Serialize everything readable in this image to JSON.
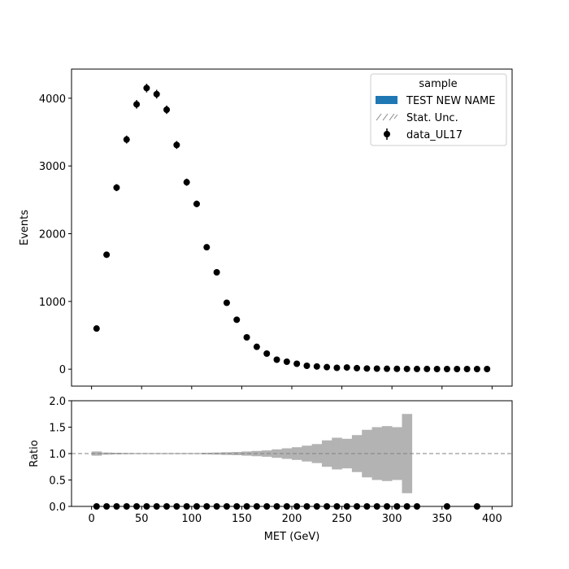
{
  "chart_data": [
    {
      "type": "scatter",
      "panel": "main",
      "title": "",
      "xlabel": "",
      "ylabel": "Events",
      "xlim": [
        -20,
        420
      ],
      "ylim": [
        -250,
        4430
      ],
      "xticks": [
        0,
        50,
        100,
        150,
        200,
        250,
        300,
        350,
        400
      ],
      "yticks": [
        0,
        1000,
        2000,
        3000,
        4000
      ],
      "grid": false,
      "legend": {
        "title": "sample",
        "placement": "top-right",
        "entries": [
          {
            "label": "TEST NEW NAME",
            "kind": "patch",
            "color": "#1f77b4"
          },
          {
            "label": "Stat. Unc.",
            "kind": "hatch",
            "color": "#888888"
          },
          {
            "label": "data_UL17",
            "kind": "errorbar-marker",
            "color": "#000000"
          }
        ]
      },
      "series": [
        {
          "name": "data_UL17",
          "color": "#000000",
          "x": [
            5,
            15,
            25,
            35,
            45,
            55,
            65,
            75,
            85,
            95,
            105,
            115,
            125,
            135,
            145,
            155,
            165,
            175,
            185,
            195,
            205,
            215,
            225,
            235,
            245,
            255,
            265,
            275,
            285,
            295,
            305,
            315,
            325,
            335,
            345,
            355,
            365,
            375,
            385,
            395
          ],
          "y": [
            600,
            1690,
            2680,
            3390,
            3910,
            4150,
            4060,
            3830,
            3310,
            2760,
            2440,
            1800,
            1430,
            980,
            730,
            470,
            330,
            230,
            140,
            110,
            80,
            50,
            40,
            30,
            20,
            25,
            15,
            10,
            8,
            6,
            5,
            4,
            3,
            3,
            2,
            2,
            2,
            2,
            2,
            2
          ],
          "yerr": [
            25,
            41,
            52,
            58,
            63,
            64,
            64,
            62,
            58,
            53,
            49,
            42,
            38,
            31,
            27,
            22,
            18,
            15,
            12,
            10,
            9,
            7,
            6,
            5,
            4,
            5,
            4,
            3,
            3,
            2,
            2,
            2,
            2,
            2,
            1,
            1,
            1,
            1,
            1,
            1
          ]
        }
      ]
    },
    {
      "type": "scatter",
      "panel": "ratio",
      "title": "",
      "xlabel": "MET (GeV)",
      "ylabel": "Ratio",
      "xlim": [
        -20,
        420
      ],
      "ylim": [
        0,
        2.0
      ],
      "xticks": [
        0,
        50,
        100,
        150,
        200,
        250,
        300,
        350,
        400
      ],
      "yticks": [
        0.0,
        0.5,
        1.0,
        1.5,
        2.0
      ],
      "ytick_labels": [
        "0.0",
        "0.5",
        "1.0",
        "1.5",
        "2.0"
      ],
      "reference_line": 1.0,
      "grid": false,
      "uncertainty_band": {
        "color": "#b3b3b3",
        "bin_edges": [
          0,
          10,
          20,
          30,
          40,
          50,
          60,
          70,
          80,
          90,
          100,
          110,
          120,
          130,
          140,
          150,
          160,
          170,
          180,
          190,
          200,
          210,
          220,
          230,
          240,
          250,
          260,
          270,
          280,
          290,
          300,
          310,
          320
        ],
        "half_width": [
          0.04,
          0.02,
          0.015,
          0.012,
          0.01,
          0.01,
          0.01,
          0.01,
          0.01,
          0.01,
          0.01,
          0.015,
          0.02,
          0.025,
          0.03,
          0.04,
          0.05,
          0.06,
          0.08,
          0.1,
          0.12,
          0.15,
          0.18,
          0.25,
          0.3,
          0.28,
          0.35,
          0.45,
          0.5,
          0.52,
          0.5,
          0.75
        ]
      },
      "series": [
        {
          "name": "data_UL17",
          "color": "#000000",
          "x": [
            5,
            15,
            25,
            35,
            45,
            55,
            65,
            75,
            85,
            95,
            105,
            115,
            125,
            135,
            145,
            155,
            165,
            175,
            185,
            195,
            205,
            215,
            225,
            235,
            245,
            255,
            265,
            275,
            285,
            295,
            305,
            315,
            325,
            355,
            385
          ],
          "y": [
            0,
            0,
            0,
            0,
            0,
            0,
            0,
            0,
            0,
            0,
            0,
            0,
            0,
            0,
            0,
            0,
            0,
            0,
            0,
            0,
            0,
            0,
            0,
            0,
            0,
            0,
            0,
            0,
            0,
            0,
            0,
            0,
            0,
            0,
            0
          ]
        }
      ]
    }
  ]
}
